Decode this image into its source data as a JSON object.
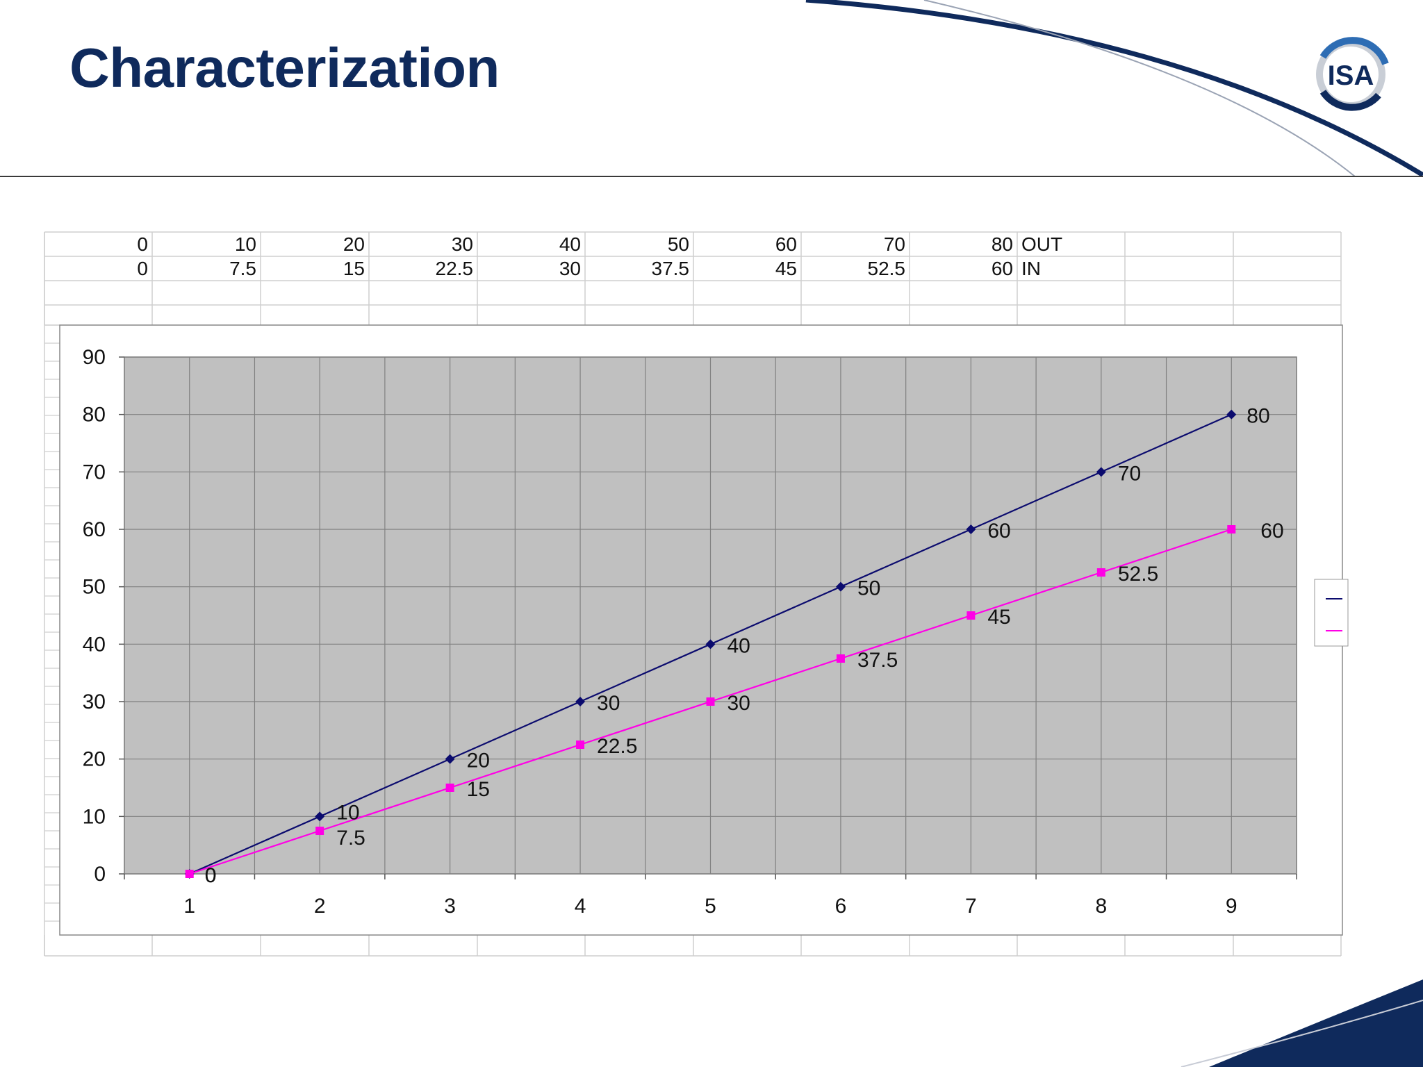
{
  "slide": {
    "title": "Characterization",
    "logo_text": "ISA"
  },
  "colors": {
    "title": "#0f2a5c",
    "series_out": "#0b0b6e",
    "series_in": "#ff00e6",
    "plot_bg": "#c0c0c0"
  },
  "table": {
    "rows": [
      {
        "values": [
          "0",
          "10",
          "20",
          "30",
          "40",
          "50",
          "60",
          "70",
          "80"
        ],
        "label": "OUT"
      },
      {
        "values": [
          "0",
          "7.5",
          "15",
          "22.5",
          "30",
          "37.5",
          "45",
          "52.5",
          "60"
        ],
        "label": "IN"
      }
    ]
  },
  "chart_data": {
    "type": "line",
    "title": "",
    "xlabel": "",
    "ylabel": "",
    "categories": [
      "1",
      "2",
      "3",
      "4",
      "5",
      "6",
      "7",
      "8",
      "9"
    ],
    "series": [
      {
        "values": [
          0,
          10,
          20,
          30,
          40,
          50,
          60,
          70,
          80
        ],
        "labels": [
          "0",
          "10",
          "20",
          "30",
          "40",
          "50",
          "60",
          "70",
          "80"
        ],
        "color": "#0b0b6e",
        "marker": "diamond"
      },
      {
        "values": [
          0,
          7.5,
          15,
          22.5,
          30,
          37.5,
          45,
          52.5,
          60
        ],
        "labels": [
          "0",
          "7.5",
          "15",
          "22.5",
          "30",
          "37.5",
          "45",
          "52.5",
          "60"
        ],
        "color": "#ff00e6",
        "marker": "square"
      }
    ],
    "ylim": [
      0,
      90
    ],
    "yticks": [
      "0",
      "10",
      "20",
      "30",
      "40",
      "50",
      "60",
      "70",
      "80",
      "90"
    ],
    "grid": true,
    "legend": "right (clipped)"
  }
}
